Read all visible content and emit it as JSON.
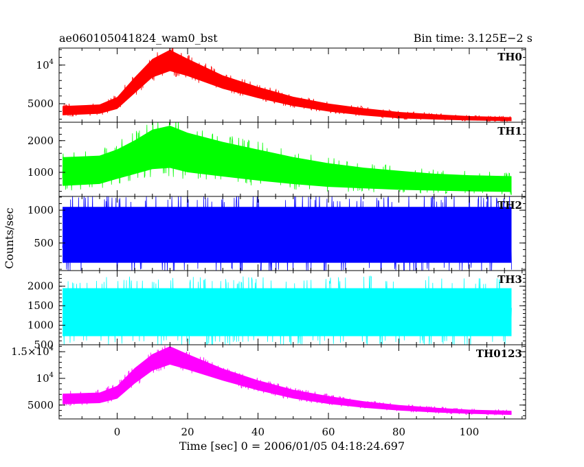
{
  "chart_data": {
    "type": "line",
    "title": "ae060105041824_wam0_bst",
    "bin_time": "Bin time: 3.125E−2 s",
    "xlabel": "Time [sec] 0 = 2006/01/05 04:18:24.697",
    "ylabel": "Counts/sec",
    "xlim": [
      -16.5,
      116
    ],
    "x_ticks": [
      {
        "value": 0,
        "label": "0"
      },
      {
        "value": 20,
        "label": "20"
      },
      {
        "value": 40,
        "label": "40"
      },
      {
        "value": 60,
        "label": "60"
      },
      {
        "value": 80,
        "label": "80"
      },
      {
        "value": 100,
        "label": "100"
      }
    ],
    "grid": false,
    "panels": [
      {
        "name": "TH0",
        "color": "#ff0000",
        "ylim": [
          2600,
          12200
        ],
        "y_ticks": [
          {
            "value": 5000,
            "label": "5000"
          },
          {
            "value": 10000,
            "label": "10",
            "exp": "4"
          }
        ],
        "envelope": {
          "x": [
            -15.5,
            -5,
            0,
            5,
            10,
            15,
            20,
            30,
            40,
            50,
            60,
            70,
            80,
            90,
            100,
            112
          ],
          "low": [
            3400,
            3600,
            4200,
            6200,
            8200,
            9000,
            8400,
            6800,
            5600,
            4600,
            3900,
            3400,
            3050,
            2900,
            2780,
            2700
          ],
          "high": [
            4800,
            5000,
            6000,
            8600,
            11000,
            12200,
            11000,
            8800,
            7300,
            6000,
            5100,
            4500,
            4000,
            3700,
            3450,
            3300
          ]
        }
      },
      {
        "name": "TH1",
        "color": "#00ff00",
        "ylim": [
          240,
          2580
        ],
        "y_ticks": [
          {
            "value": 1000,
            "label": "1000"
          },
          {
            "value": 2000,
            "label": "2000"
          }
        ],
        "envelope": {
          "x": [
            -15.5,
            -5,
            0,
            5,
            10,
            15,
            20,
            30,
            40,
            50,
            60,
            70,
            80,
            90,
            100,
            112
          ],
          "low": [
            500,
            560,
            720,
            860,
            1000,
            1030,
            900,
            780,
            660,
            560,
            480,
            440,
            400,
            380,
            360,
            340
          ],
          "high": [
            1550,
            1600,
            1800,
            2100,
            2450,
            2580,
            2350,
            2050,
            1800,
            1550,
            1350,
            1200,
            1100,
            1000,
            950,
            920
          ]
        }
      },
      {
        "name": "TH2",
        "color": "#0000ff",
        "ylim": [
          80,
          1210
        ],
        "y_ticks": [
          {
            "value": 500,
            "label": "500"
          },
          {
            "value": 1000,
            "label": "1000"
          }
        ],
        "envelope": {
          "x": [
            -15.5,
            112
          ],
          "low": [
            130,
            130
          ],
          "high": [
            1120,
            1120
          ]
        }
      },
      {
        "name": "TH3",
        "color": "#00ffff",
        "ylim": [
          500,
          2400
        ],
        "y_ticks": [
          {
            "value": 500,
            "label": "500"
          },
          {
            "value": 1000,
            "label": "1000"
          },
          {
            "value": 1500,
            "label": "1500"
          },
          {
            "value": 2000,
            "label": "2000"
          }
        ],
        "envelope": {
          "x": [
            -15.5,
            112
          ],
          "low": [
            620,
            620
          ],
          "high": [
            2050,
            2050
          ]
        }
      },
      {
        "name": "TH0123",
        "color": "#ff00ff",
        "ylim": [
          2400,
          16300
        ],
        "y_ticks": [
          {
            "value": 5000,
            "label": "5000"
          },
          {
            "value": 10000,
            "label": "10",
            "exp": "4"
          },
          {
            "value": 15000,
            "label": "1.5×10",
            "exp": "4"
          }
        ],
        "envelope": {
          "x": [
            -15.5,
            -5,
            0,
            5,
            10,
            15,
            20,
            30,
            40,
            50,
            60,
            70,
            80,
            90,
            100,
            112
          ],
          "low": [
            5000,
            5200,
            6000,
            8800,
            11200,
            12300,
            11400,
            9400,
            7600,
            6100,
            5100,
            4400,
            3900,
            3550,
            3300,
            3100
          ],
          "high": [
            7300,
            7500,
            8800,
            12200,
            14800,
            16300,
            14800,
            12000,
            9800,
            8000,
            6800,
            5800,
            5100,
            4600,
            4200,
            4000
          ]
        }
      }
    ]
  }
}
